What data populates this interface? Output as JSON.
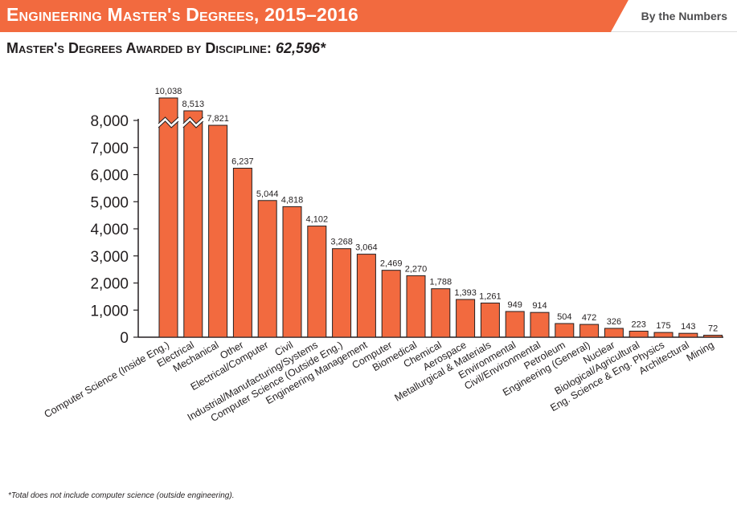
{
  "header": {
    "title": "Engineering Master's Degrees, 2015–2016",
    "badge": "By the Numbers"
  },
  "subtitle": {
    "text": "Master's Degrees Awarded by Discipline:",
    "total": "62,596*"
  },
  "footnote": "*Total does not include computer science (outside engineering).",
  "colors": {
    "bar": "#f26a3f",
    "bar_border": "#231f20",
    "banner": "#f26a3f",
    "badge_bg": "#ffffff"
  },
  "chart_data": {
    "type": "bar",
    "title": "Master's Degrees Awarded by Discipline: 62,596*",
    "xlabel": "",
    "ylabel": "",
    "ylim": [
      0,
      8000
    ],
    "yticks": [
      0,
      1000,
      2000,
      3000,
      4000,
      5000,
      6000,
      7000,
      8000
    ],
    "ytick_labels": [
      "0",
      "1,000",
      "2,000",
      "3,000",
      "4,000",
      "5,000",
      "6,000",
      "7,000",
      "8,000"
    ],
    "grid": false,
    "broken_axis_bars": [
      "Computer Science (Inside Eng.)",
      "Electrical"
    ],
    "categories": [
      "Computer Science (Inside Eng.)",
      "Electrical",
      "Mechanical",
      "Other",
      "Electrical/Computer",
      "Civil",
      "Industrial/Manufacturing/Systems",
      "Computer Science (Outside Eng.)",
      "Engineering Management",
      "Computer",
      "Biomedical",
      "Chemical",
      "Aerospace",
      "Metallurgical & Materials",
      "Environmental",
      "Civil/Environmental",
      "Petroleum",
      "Engineering (General)",
      "Nuclear",
      "Biological/Agricultural",
      "Eng. Science & Eng. Physics",
      "Architectural",
      "Mining"
    ],
    "values": [
      10038,
      8513,
      7821,
      6237,
      5044,
      4818,
      4102,
      3268,
      3064,
      2469,
      2270,
      1788,
      1393,
      1261,
      949,
      914,
      504,
      472,
      326,
      223,
      175,
      143,
      72
    ],
    "value_labels": [
      "10,038",
      "8,513",
      "7,821",
      "6,237",
      "5,044",
      "4,818",
      "4,102",
      "3,268",
      "3,064",
      "2,469",
      "2,270",
      "1,788",
      "1,393",
      "1,261",
      "949",
      "914",
      "504",
      "472",
      "326",
      "223",
      "175",
      "143",
      "72"
    ]
  }
}
